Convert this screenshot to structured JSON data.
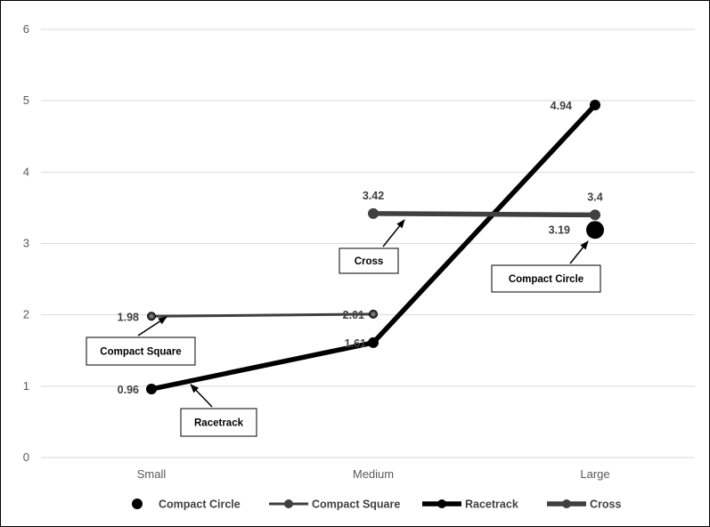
{
  "chart_data": {
    "type": "line",
    "categories": [
      "Small",
      "Medium",
      "Large"
    ],
    "ylim": [
      0,
      6
    ],
    "yticks": [
      "0",
      "1",
      "2",
      "3",
      "4",
      "5",
      "6"
    ],
    "grid": true,
    "legend_position": "bottom",
    "series": [
      {
        "name": "Compact Circle",
        "values": [
          null,
          null,
          3.19
        ],
        "labels": [
          "",
          "",
          "3.19"
        ],
        "color": "#000000",
        "style": "marker-only"
      },
      {
        "name": "Compact Square",
        "values": [
          1.98,
          2.01,
          null
        ],
        "labels": [
          "1.98",
          "2.01",
          ""
        ],
        "color": "#404040",
        "style": "thin"
      },
      {
        "name": "Racetrack",
        "values": [
          0.96,
          1.61,
          4.94
        ],
        "labels": [
          "0.96",
          "1.61",
          "4.94"
        ],
        "color": "#000000",
        "style": "thick"
      },
      {
        "name": "Cross",
        "values": [
          null,
          3.42,
          3.4
        ],
        "labels": [
          "",
          "3.42",
          "3.4"
        ],
        "color": "#404040",
        "style": "thick"
      }
    ],
    "annotations": [
      {
        "text": "Cross",
        "series": "Cross",
        "category": "Medium"
      },
      {
        "text": "Compact Circle",
        "series": "Compact Circle",
        "category": "Large"
      },
      {
        "text": "Compact Square",
        "series": "Compact Square",
        "category": "Small"
      },
      {
        "text": "Racetrack",
        "series": "Racetrack",
        "category": "Small"
      }
    ]
  }
}
